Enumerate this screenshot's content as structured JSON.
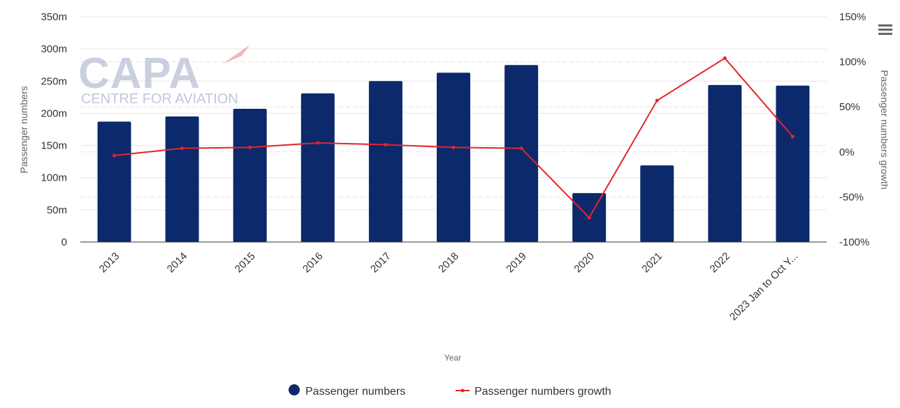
{
  "chart_data": {
    "type": "bar+line",
    "categories": [
      "2013",
      "2014",
      "2015",
      "2016",
      "2017",
      "2018",
      "2019",
      "2020",
      "2021",
      "2022",
      "2023 Jan to Oct Y..."
    ],
    "series": [
      {
        "name": "Passenger numbers",
        "type": "bar",
        "axis": "left",
        "color": "#0c2a6b",
        "values": [
          187,
          195,
          207,
          231,
          250,
          263,
          275,
          76,
          119,
          244,
          243
        ]
      },
      {
        "name": "Passenger numbers growth",
        "type": "line",
        "axis": "right",
        "color": "#e3242b",
        "values": [
          -4,
          4,
          5,
          10,
          8,
          5,
          4,
          -73,
          57,
          104,
          17
        ]
      }
    ],
    "xlabel": "Year",
    "ylabel_left": "Passenger numbers",
    "ylabel_right": "Passenger numbers growth",
    "ylim_left": [
      0,
      350
    ],
    "ylim_right": [
      -100,
      150
    ],
    "left_ticks": [
      "0",
      "50m",
      "100m",
      "150m",
      "200m",
      "250m",
      "300m",
      "350m"
    ],
    "right_ticks": [
      "-100%",
      "-50%",
      "0%",
      "50%",
      "100%",
      "150%"
    ],
    "grid": true,
    "legend_position": "bottom-center"
  },
  "legend": {
    "bars_label": "Passenger numbers",
    "line_label": "Passenger numbers growth"
  },
  "watermark": {
    "logo_text": "CAPA",
    "tagline": "CENTRE FOR AVIATION"
  },
  "menu_icon": "hamburger-menu-icon"
}
